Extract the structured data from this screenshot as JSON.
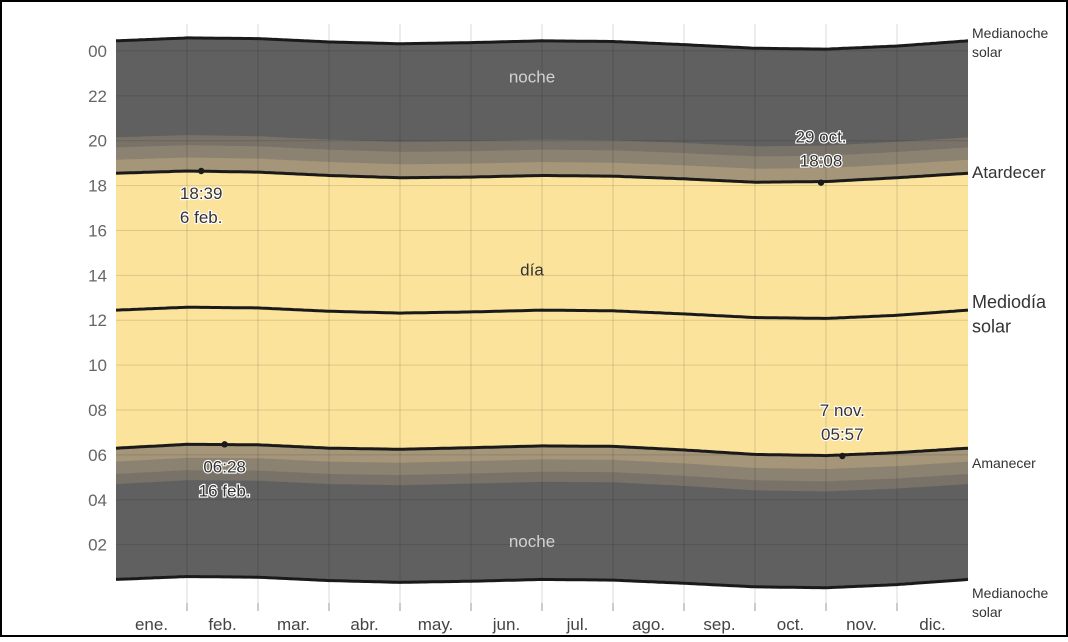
{
  "chart_data": {
    "type": "area",
    "title": "",
    "xlabel": "",
    "ylabel": "",
    "y_ticks": [
      "00",
      "22",
      "20",
      "18",
      "16",
      "14",
      "12",
      "10",
      "08",
      "06",
      "04",
      "02"
    ],
    "months": [
      "ene.",
      "feb.",
      "mar.",
      "abr.",
      "may.",
      "jun.",
      "jul.",
      "ago.",
      "sep.",
      "oct.",
      "nov.",
      "dic."
    ],
    "region_labels": {
      "night_top": "noche",
      "day": "día",
      "night_bottom": "noche"
    },
    "right_labels": {
      "midnight_top": [
        "Medianoche",
        "solar"
      ],
      "sunset": "Atardecer",
      "noon": [
        "Mediodía",
        "solar"
      ],
      "sunrise": "Amanecer",
      "midnight_bottom": [
        "Medianoche",
        "solar"
      ]
    },
    "grid": true,
    "colors": {
      "night": "#606060",
      "day": "#fbe39c",
      "twilight": [
        "#a5967a",
        "#8c8271",
        "#787268"
      ],
      "line": "#1a1a1a"
    },
    "series": [
      {
        "name": "Atardecer",
        "x": [
          0,
          1,
          2,
          3,
          4,
          5,
          6,
          7,
          8,
          9,
          10,
          11,
          12
        ],
        "y": [
          18.55,
          18.65,
          18.6,
          18.45,
          18.35,
          18.38,
          18.45,
          18.42,
          18.3,
          18.15,
          18.18,
          18.35,
          18.55
        ]
      },
      {
        "name": "Mediodía solar",
        "x": [
          0,
          1,
          2,
          3,
          4,
          5,
          6,
          7,
          8,
          9,
          10,
          11,
          12
        ],
        "y": [
          12.45,
          12.58,
          12.55,
          12.4,
          12.32,
          12.37,
          12.45,
          12.42,
          12.28,
          12.12,
          12.08,
          12.22,
          12.45
        ]
      },
      {
        "name": "Amanecer",
        "x": [
          0,
          1,
          2,
          3,
          4,
          5,
          6,
          7,
          8,
          9,
          10,
          11,
          12
        ],
        "y": [
          6.3,
          6.47,
          6.45,
          6.3,
          6.25,
          6.32,
          6.4,
          6.38,
          6.22,
          6.02,
          5.97,
          6.1,
          6.3
        ]
      },
      {
        "name": "Medianoche solar",
        "x": [
          0,
          1,
          2,
          3,
          4,
          5,
          6,
          7,
          8,
          9,
          10,
          11,
          12
        ],
        "y": [
          0.45,
          0.58,
          0.55,
          0.4,
          0.32,
          0.37,
          0.45,
          0.42,
          0.28,
          0.12,
          0.08,
          0.22,
          0.45
        ]
      }
    ],
    "annotations": [
      {
        "series": "Atardecer",
        "x": 1.2,
        "y": 18.65,
        "lines": [
          "18:39",
          "6 feb."
        ],
        "placement": "below"
      },
      {
        "series": "Atardecer",
        "x": 9.93,
        "y": 18.13,
        "lines": [
          "29 oct.",
          "18:08"
        ],
        "placement": "above"
      },
      {
        "series": "Amanecer",
        "x": 1.53,
        "y": 6.47,
        "lines": [
          "06:28",
          "16 feb."
        ],
        "placement": "below"
      },
      {
        "series": "Amanecer",
        "x": 10.23,
        "y": 5.95,
        "lines": [
          "7 nov.",
          "05:57"
        ],
        "placement": "above"
      }
    ],
    "ylim": [
      -0.6,
      25.2
    ],
    "xlim": [
      0,
      12
    ]
  }
}
